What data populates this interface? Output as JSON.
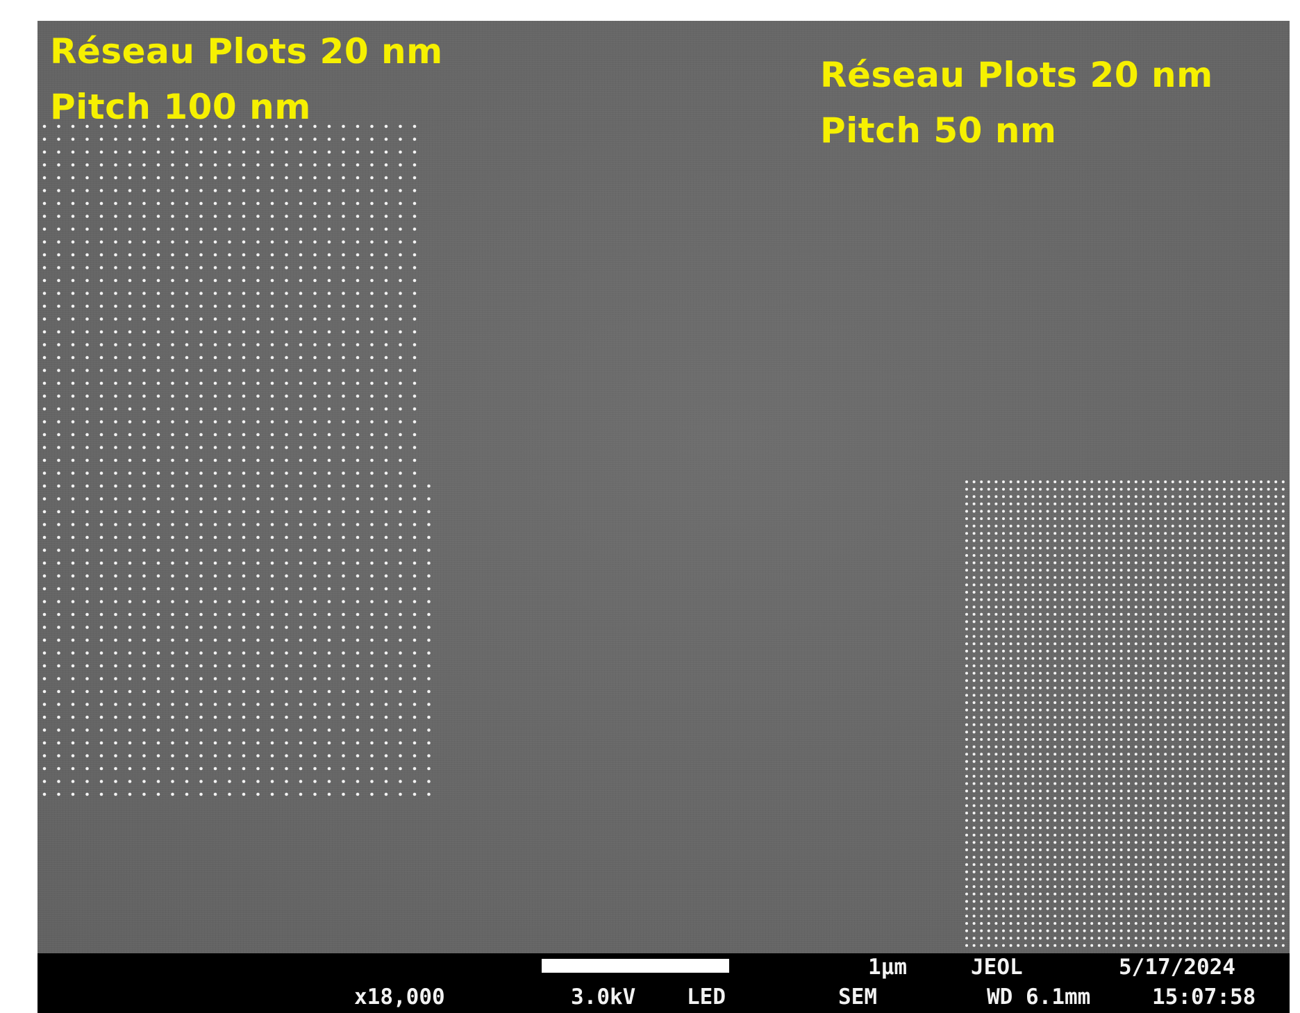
{
  "sem_image": {
    "labels": {
      "left_line1": "Réseau Plots 20 nm",
      "left_line2": "Pitch 100 nm",
      "right_line1": "Réseau Plots 20 nm",
      "right_line2": "Pitch 50 nm"
    },
    "label_color": "#f6f000",
    "background_color": "#686868",
    "dot_color": "#f4f4f4"
  },
  "info_bar": {
    "magnification": "x18,000",
    "voltage": "3.0kV",
    "detector": "LED",
    "scale_label": "1µm",
    "mode": "SEM",
    "brand": "JEOL",
    "working_distance": "WD 6.1mm",
    "date": "5/17/2024",
    "time": "15:07:58"
  }
}
